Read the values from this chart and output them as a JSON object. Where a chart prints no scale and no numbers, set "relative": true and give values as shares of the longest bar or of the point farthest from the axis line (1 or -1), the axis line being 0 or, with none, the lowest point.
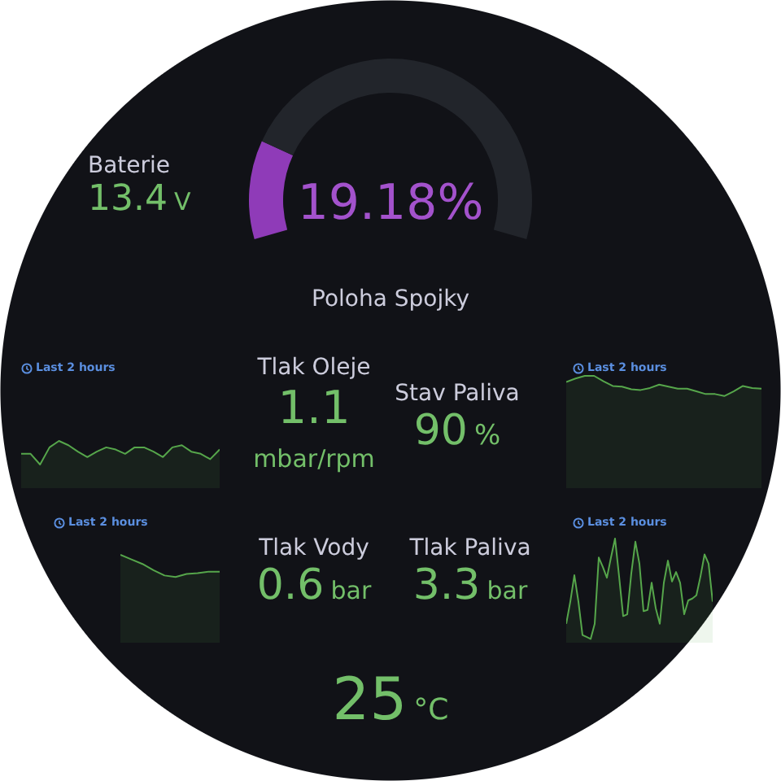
{
  "chart_data": [
    {
      "type": "donut",
      "title": "Poloha Spojky",
      "categories": [
        null,
        null
      ],
      "values": [
        19.18,
        80.82
      ],
      "colors": [
        "#8f3bb8",
        "#22252b"
      ],
      "annotations": [
        "19.18%"
      ]
    },
    {
      "type": "other",
      "title": "Baterie",
      "annotations": [
        "13.4",
        "V"
      ]
    },
    {
      "type": "area",
      "relative": true,
      "color": "#56a64b",
      "annotations": [
        "Last 2 hours"
      ],
      "categories": [
        null,
        null,
        null,
        null,
        null,
        null,
        null,
        null,
        null,
        null,
        null,
        null,
        null,
        null,
        null,
        null,
        null,
        null,
        null,
        null,
        null,
        null
      ],
      "values": [
        0.727,
        0.727,
        0.5,
        0.864,
        1,
        0.909,
        0.773,
        0.659,
        0.773,
        0.864,
        0.818,
        0.727,
        0.864,
        0.864,
        0.773,
        0.659,
        0.864,
        0.909,
        0.773,
        0.727,
        0.614,
        0.818
      ]
    },
    {
      "type": "other",
      "title": "Tlak Oleje",
      "annotations": [
        "1.1",
        "mbar/rpm"
      ]
    },
    {
      "type": "other",
      "title": "Stav Paliva",
      "annotations": [
        "90",
        "%"
      ]
    },
    {
      "type": "area",
      "relative": true,
      "color": "#56a64b",
      "annotations": [
        "Last 2 hours"
      ],
      "categories": [
        null,
        null,
        null,
        null,
        null,
        null,
        null,
        null,
        null,
        null,
        null,
        null,
        null,
        null,
        null,
        null,
        null,
        null,
        null,
        null,
        null,
        null
      ],
      "values": [
        0.946,
        0.976,
        1,
        1,
        0.952,
        0.91,
        0.904,
        0.88,
        0.874,
        0.892,
        0.922,
        0.904,
        0.886,
        0.886,
        0.862,
        0.838,
        0.838,
        0.82,
        0.862,
        0.91,
        0.892,
        0.886
      ]
    },
    {
      "type": "area",
      "relative": true,
      "color": "#56a64b",
      "annotations": [
        "Last 2 hours"
      ],
      "categories": [
        null,
        null,
        null,
        null,
        null,
        null,
        null,
        null,
        null,
        null
      ],
      "values": [
        1,
        0.948,
        0.896,
        0.826,
        0.765,
        0.748,
        0.783,
        0.791,
        0.809,
        0.809
      ]
    },
    {
      "type": "other",
      "title": "Tlak Vody",
      "annotations": [
        "0.6",
        "bar"
      ]
    },
    {
      "type": "other",
      "title": "Tlak Paliva",
      "annotations": [
        "3.3",
        "bar"
      ]
    },
    {
      "type": "area",
      "relative": true,
      "color": "#56a64b",
      "annotations": [
        "Last 2 hours"
      ],
      "categories": [
        null,
        null,
        null,
        null,
        null,
        null,
        null,
        null,
        null,
        null,
        null,
        null,
        null,
        null,
        null,
        null,
        null,
        null,
        null,
        null,
        null,
        null,
        null,
        null,
        null,
        null,
        null,
        null,
        null,
        null,
        null,
        null,
        null,
        null,
        null,
        null,
        null
      ],
      "values": [
        0.182,
        0.394,
        0.648,
        0.394,
        0.073,
        0.055,
        0.036,
        0.182,
        0.818,
        0.727,
        0.624,
        0.818,
        1,
        0.636,
        0.255,
        0.273,
        0.667,
        0.97,
        0.758,
        0.303,
        0.315,
        0.576,
        0.333,
        0.182,
        0.576,
        0.788,
        0.588,
        0.679,
        0.576,
        0.273,
        0.406,
        0.424,
        0.455,
        0.636,
        0.848,
        0.758,
        0.394
      ]
    },
    {
      "type": "other",
      "annotations": [
        "25",
        "°C"
      ]
    }
  ]
}
